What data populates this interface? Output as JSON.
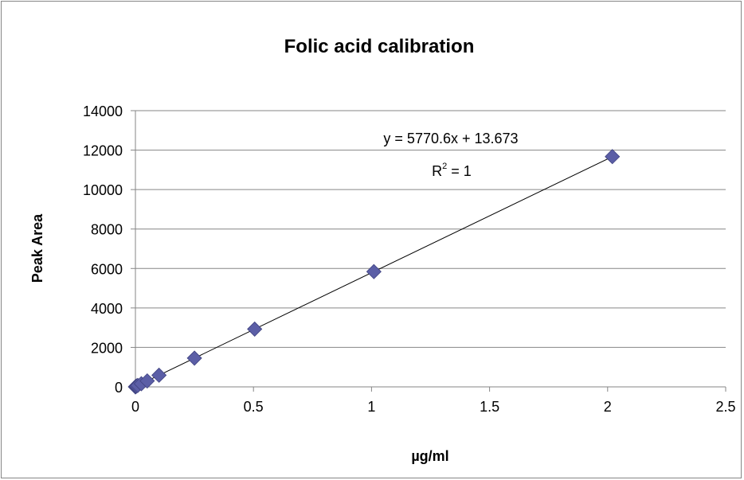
{
  "chart_data": {
    "type": "scatter",
    "title": "Folic acid calibration",
    "xlabel": "µg/ml",
    "ylabel": "Peak Area",
    "xlim": [
      0,
      2.5
    ],
    "ylim": [
      0,
      14000
    ],
    "x_ticks": [
      "0",
      "0.5",
      "1",
      "1.5",
      "2",
      "2.5"
    ],
    "y_ticks": [
      "0",
      "2000",
      "4000",
      "6000",
      "8000",
      "10000",
      "12000",
      "14000"
    ],
    "grid": "horizontal",
    "marker_color": "#5B5EA6",
    "series": [
      {
        "x": [
          0.0,
          0.0025,
          0.005,
          0.01,
          0.025,
          0.05,
          0.1,
          0.25,
          0.505,
          1.01,
          2.02
        ],
        "y": [
          0,
          28,
          43,
          71,
          158,
          302,
          591,
          1456,
          2928,
          5841,
          11671
        ]
      }
    ],
    "trendline": {
      "slope": 5770.6,
      "intercept": 13.673,
      "equation": "y = 5770.6x + 13.673",
      "r2_prefix": "R",
      "r2_exp": "2",
      "r2_value": " = 1"
    }
  }
}
